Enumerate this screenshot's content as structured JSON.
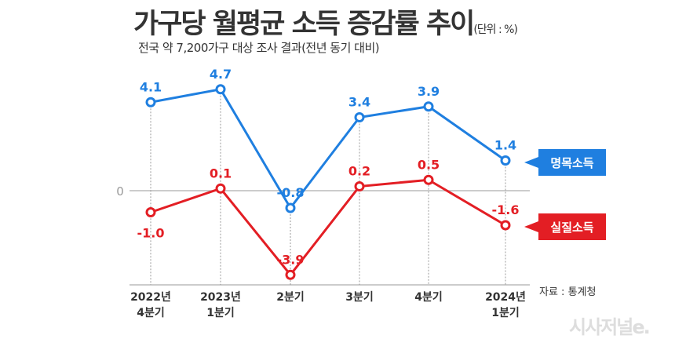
{
  "chart_data": {
    "type": "line",
    "title": "가구당 월평균 소득 증감률 추이",
    "unit": "(단위 : %)",
    "subtitle": "전국 약 7,200가구 대상 조사 결과(전년 동기 대비)",
    "categories": [
      [
        "2022년",
        "4분기"
      ],
      [
        "2023년",
        "1분기"
      ],
      [
        "2분기"
      ],
      [
        "3분기"
      ],
      [
        "4분기"
      ],
      [
        "2024년",
        "1분기"
      ]
    ],
    "series": [
      {
        "name": "명목소득",
        "color": "#1f7fe0",
        "values": [
          4.1,
          4.7,
          -0.8,
          3.4,
          3.9,
          1.4
        ],
        "labels": [
          "4.1",
          "4.7",
          "-0.8",
          "3.4",
          "3.9",
          "1.4"
        ]
      },
      {
        "name": "실질소득",
        "color": "#e31e24",
        "values": [
          -1.0,
          0.1,
          -3.9,
          0.2,
          0.5,
          -1.6
        ],
        "labels": [
          "-1.0",
          "0.1",
          "-3.9",
          "0.2",
          "0.5",
          "-1.6"
        ]
      }
    ],
    "yticks": [
      "0"
    ],
    "grid": false
  },
  "source": "자료 : 통계청",
  "logo": "시사저널e."
}
